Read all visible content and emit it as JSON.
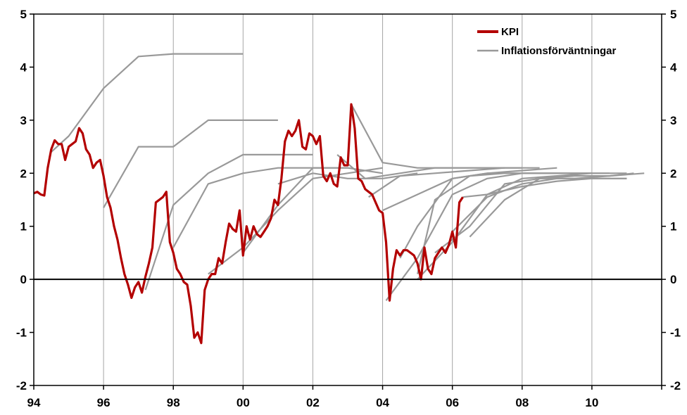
{
  "chart_data": {
    "type": "line",
    "x_range": [
      1994,
      2012
    ],
    "ylim": [
      -2,
      5
    ],
    "y_ticks": [
      "5",
      "4",
      "3",
      "2",
      "1",
      "0",
      "-1",
      "-2"
    ],
    "x_tick_labels": [
      "94",
      "96",
      "98",
      "00",
      "02",
      "04",
      "06",
      "08",
      "10"
    ],
    "grid": true,
    "legend_position": "top-right",
    "legend": [
      "KPI",
      "Inflationsförväntningar"
    ],
    "colors": {
      "kpi": "#b30000",
      "expectations": "#999999"
    },
    "kpi": {
      "name": "KPI",
      "x": [
        1994.0,
        1994.1,
        1994.2,
        1994.3,
        1994.4,
        1994.5,
        1994.6,
        1994.7,
        1994.8,
        1994.9,
        1995.0,
        1995.1,
        1995.2,
        1995.3,
        1995.4,
        1995.5,
        1995.6,
        1995.7,
        1995.8,
        1995.9,
        1996.0,
        1996.1,
        1996.2,
        1996.3,
        1996.4,
        1996.5,
        1996.6,
        1996.7,
        1996.8,
        1996.9,
        1997.0,
        1997.1,
        1997.2,
        1997.3,
        1997.4,
        1997.5,
        1997.6,
        1997.7,
        1997.8,
        1997.9,
        1998.0,
        1998.1,
        1998.2,
        1998.3,
        1998.4,
        1998.5,
        1998.6,
        1998.7,
        1998.8,
        1998.9,
        1999.0,
        1999.1,
        1999.2,
        1999.3,
        1999.4,
        1999.5,
        1999.6,
        1999.7,
        1999.8,
        1999.9,
        2000.0,
        2000.1,
        2000.2,
        2000.3,
        2000.4,
        2000.5,
        2000.6,
        2000.7,
        2000.8,
        2000.9,
        2001.0,
        2001.1,
        2001.2,
        2001.3,
        2001.4,
        2001.5,
        2001.6,
        2001.7,
        2001.8,
        2001.9,
        2002.0,
        2002.1,
        2002.2,
        2002.3,
        2002.4,
        2002.5,
        2002.6,
        2002.7,
        2002.8,
        2002.9,
        2003.0,
        2003.1,
        2003.2,
        2003.3,
        2003.4,
        2003.5,
        2003.6,
        2003.7,
        2003.8,
        2003.9,
        2004.0,
        2004.1,
        2004.2,
        2004.3,
        2004.4,
        2004.5,
        2004.6,
        2004.7,
        2004.8,
        2004.9,
        2005.0,
        2005.1,
        2005.2,
        2005.3,
        2005.4,
        2005.5,
        2005.6,
        2005.7,
        2005.8,
        2005.9,
        2006.0,
        2006.1,
        2006.2,
        2006.3
      ],
      "values": [
        1.62,
        1.65,
        1.6,
        1.58,
        2.1,
        2.45,
        2.62,
        2.55,
        2.55,
        2.25,
        2.5,
        2.55,
        2.6,
        2.85,
        2.75,
        2.45,
        2.35,
        2.1,
        2.2,
        2.25,
        1.95,
        1.55,
        1.35,
        1.0,
        0.75,
        0.4,
        0.1,
        -0.1,
        -0.35,
        -0.15,
        -0.05,
        -0.25,
        0.05,
        0.3,
        0.6,
        1.45,
        1.5,
        1.55,
        1.65,
        0.7,
        0.5,
        0.2,
        0.1,
        -0.05,
        -0.1,
        -0.5,
        -1.1,
        -1.0,
        -1.2,
        -0.2,
        0.0,
        0.1,
        0.1,
        0.4,
        0.3,
        0.7,
        1.05,
        0.95,
        0.9,
        1.3,
        0.45,
        1.0,
        0.75,
        1.0,
        0.85,
        0.8,
        0.9,
        1.0,
        1.15,
        1.5,
        1.4,
        1.9,
        2.6,
        2.8,
        2.7,
        2.8,
        3.0,
        2.5,
        2.45,
        2.75,
        2.7,
        2.55,
        2.7,
        1.95,
        1.85,
        2.0,
        1.8,
        1.75,
        2.3,
        2.15,
        2.15,
        3.3,
        2.85,
        1.9,
        1.85,
        1.7,
        1.65,
        1.6,
        1.45,
        1.3,
        1.25,
        0.7,
        -0.4,
        0.2,
        0.55,
        0.45,
        0.55,
        0.55,
        0.5,
        0.45,
        0.3,
        0.0,
        0.6,
        0.2,
        0.1,
        0.4,
        0.5,
        0.6,
        0.5,
        0.65,
        0.9,
        0.6,
        1.45,
        1.55
      ]
    },
    "expectations": [
      {
        "x": [
          1994.5,
          1995.0,
          1996.0,
          1997.0,
          1998.0,
          1999.0,
          2000.0
        ],
        "values": [
          2.4,
          2.7,
          3.6,
          4.2,
          4.25,
          4.25,
          4.25
        ]
      },
      {
        "x": [
          1996.0,
          1997.0,
          1998.0,
          1999.0,
          2000.0,
          2001.0
        ],
        "values": [
          1.35,
          2.5,
          2.5,
          3.0,
          3.0,
          3.0
        ]
      },
      {
        "x": [
          1997.2,
          1998.0,
          1999.0,
          2000.0,
          2001.0,
          2002.0
        ],
        "values": [
          -0.2,
          1.4,
          2.0,
          2.35,
          2.35,
          2.35
        ]
      },
      {
        "x": [
          1998.0,
          1999.0,
          2000.0,
          2001.0,
          2002.0,
          2003.0
        ],
        "values": [
          0.6,
          1.8,
          2.0,
          2.1,
          2.1,
          2.1
        ]
      },
      {
        "x": [
          1999.0,
          2000.0,
          2001.0,
          2002.0,
          2003.0,
          2004.0
        ],
        "values": [
          0.1,
          0.6,
          1.3,
          1.9,
          2.0,
          2.1
        ]
      },
      {
        "x": [
          2000.0,
          2001.0,
          2002.0,
          2003.0,
          2004.0
        ],
        "values": [
          0.5,
          1.4,
          2.1,
          2.1,
          2.0
        ]
      },
      {
        "x": [
          2001.0,
          2002.0,
          2003.0,
          2004.0,
          2005.0
        ],
        "values": [
          1.8,
          2.0,
          1.9,
          1.9,
          2.0
        ]
      },
      {
        "x": [
          2002.7,
          2003.5,
          2004.5,
          2005.5,
          2006.5,
          2007.5
        ],
        "values": [
          2.35,
          1.9,
          2.0,
          2.1,
          2.1,
          2.1
        ]
      },
      {
        "x": [
          2003.1,
          2004.0,
          2005.0,
          2006.0,
          2007.0,
          2008.0
        ],
        "values": [
          3.3,
          2.2,
          2.1,
          2.1,
          2.1,
          2.1
        ]
      },
      {
        "x": [
          2003.6,
          2004.5,
          2005.5,
          2006.5,
          2007.5,
          2008.5
        ],
        "values": [
          1.55,
          1.95,
          2.0,
          2.05,
          2.1,
          2.1
        ]
      },
      {
        "x": [
          2004.0,
          2005.0,
          2006.0,
          2007.0,
          2008.0,
          2009.0
        ],
        "values": [
          1.3,
          1.6,
          1.9,
          2.0,
          2.05,
          2.1
        ]
      },
      {
        "x": [
          2004.1,
          2005.0,
          2006.0,
          2007.0,
          2008.0,
          2009.0,
          2010.0
        ],
        "values": [
          -0.4,
          0.4,
          1.6,
          1.9,
          2.0,
          2.0,
          2.0
        ]
      },
      {
        "x": [
          2004.5,
          2005.0,
          2006.0,
          2007.0,
          2008.0,
          2009.0,
          2010.0
        ],
        "values": [
          0.4,
          1.0,
          1.9,
          2.0,
          2.0,
          2.0,
          2.0
        ]
      },
      {
        "x": [
          2005.0,
          2005.5,
          2006.5,
          2007.5,
          2008.5,
          2009.5,
          2010.5
        ],
        "values": [
          0.1,
          1.5,
          1.95,
          2.0,
          2.0,
          2.0,
          2.0
        ]
      },
      {
        "x": [
          2005.0,
          2006.0,
          2007.0,
          2008.0,
          2009.0,
          2010.0,
          2011.0
        ],
        "values": [
          0.0,
          0.7,
          1.6,
          1.9,
          1.95,
          2.0,
          2.0
        ]
      },
      {
        "x": [
          2005.5,
          2006.5,
          2007.5,
          2008.5,
          2009.5,
          2010.5,
          2011.2
        ],
        "values": [
          0.5,
          1.0,
          1.8,
          1.9,
          1.9,
          1.95,
          2.0
        ]
      },
      {
        "x": [
          2006.0,
          2007.0,
          2008.0,
          2009.0,
          2010.0,
          2011.0
        ],
        "values": [
          0.9,
          1.55,
          1.8,
          1.9,
          1.9,
          1.9
        ]
      },
      {
        "x": [
          2006.3,
          2007.0,
          2008.0,
          2009.0,
          2010.0,
          2011.0
        ],
        "values": [
          1.55,
          1.6,
          1.75,
          1.85,
          1.9,
          1.9
        ]
      },
      {
        "x": [
          2006.5,
          2007.5,
          2008.5,
          2009.5,
          2010.5,
          2011.5
        ],
        "values": [
          0.8,
          1.5,
          1.9,
          1.95,
          1.95,
          2.0
        ]
      }
    ]
  }
}
